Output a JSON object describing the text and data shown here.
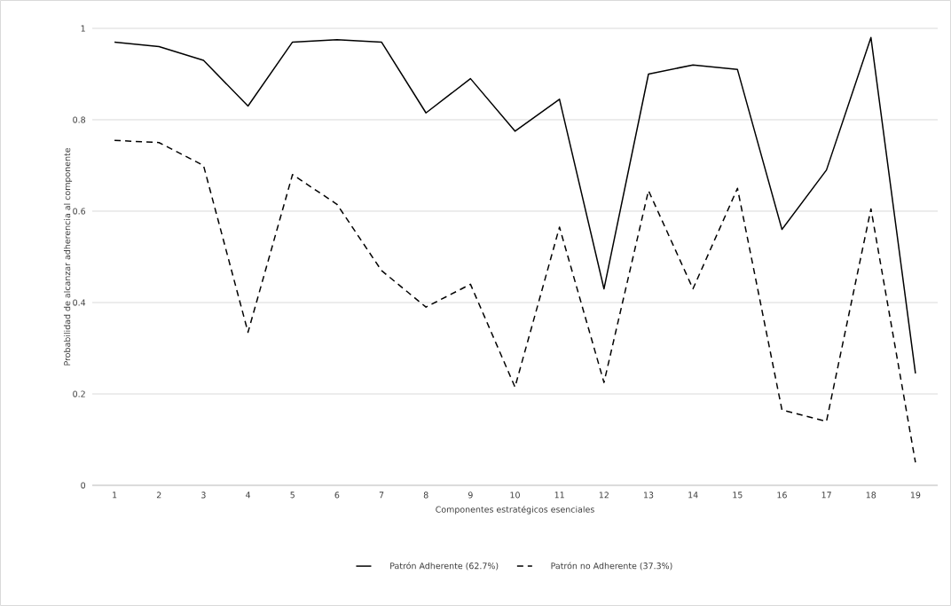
{
  "chart_data": {
    "type": "line",
    "xlabel": "Componentes estratégicos esenciales",
    "ylabel": "Probabilidad de alcanzar adherencia al componente",
    "categories": [
      "1",
      "2",
      "3",
      "4",
      "5",
      "6",
      "7",
      "8",
      "9",
      "10",
      "11",
      "12",
      "13",
      "14",
      "15",
      "16",
      "17",
      "18",
      "19"
    ],
    "series": [
      {
        "name": "Patrón Adherente (62.7%)",
        "color": "#000000",
        "line_style": "solid",
        "values": [
          0.97,
          0.96,
          0.93,
          0.83,
          0.97,
          0.975,
          0.97,
          0.815,
          0.89,
          0.775,
          0.845,
          0.43,
          0.9,
          0.92,
          0.91,
          0.56,
          0.69,
          0.98,
          0.245
        ]
      },
      {
        "name": "Patrón no Adherente (37.3%)",
        "color": "#000000",
        "line_style": "dashed",
        "values": [
          0.755,
          0.75,
          0.7,
          0.335,
          0.68,
          0.615,
          0.47,
          0.39,
          0.44,
          0.215,
          0.565,
          0.225,
          0.645,
          0.43,
          0.65,
          0.165,
          0.14,
          0.605,
          0.05
        ]
      }
    ],
    "ylim": [
      0,
      1
    ],
    "yticks": [
      0,
      0.2,
      0.4,
      0.6,
      0.8,
      1
    ],
    "grid": "y",
    "legend": "bottom",
    "marker": "none"
  }
}
